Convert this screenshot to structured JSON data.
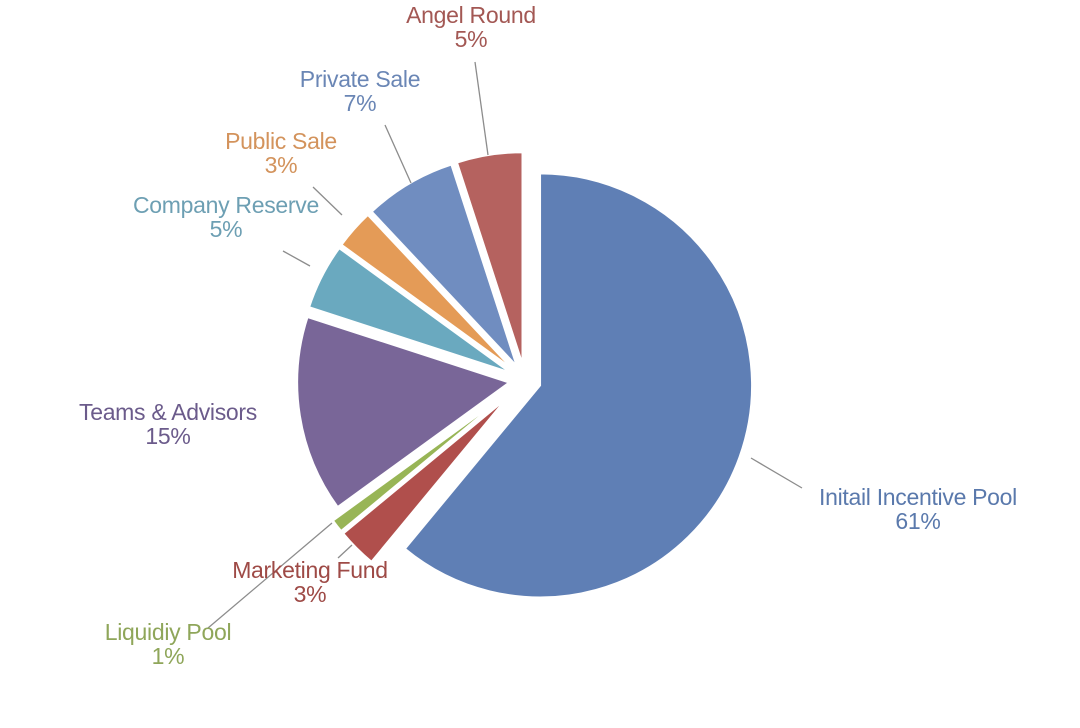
{
  "chart_data": {
    "type": "pie",
    "title": "",
    "exploded": true,
    "legend": "none",
    "slices": [
      {
        "name": "Initail Incentive Pool",
        "value": 61,
        "label": "61%",
        "color": "#5f7fb5",
        "label_color": "#5a79ac"
      },
      {
        "name": "Marketing Fund",
        "value": 3,
        "label": "3%",
        "color": "#b04f4c",
        "label_color": "#9e4a46"
      },
      {
        "name": "Liquidiy Pool",
        "value": 1,
        "label": "1%",
        "color": "#98b556",
        "label_color": "#8fa65a"
      },
      {
        "name": "Teams & Advisors",
        "value": 15,
        "label": "15%",
        "color": "#796698",
        "label_color": "#6b5b8b"
      },
      {
        "name": "Company Reserve",
        "value": 5,
        "label": "5%",
        "color": "#6aa9bf",
        "label_color": "#6d9fb3"
      },
      {
        "name": "Public Sale",
        "value": 3,
        "label": "3%",
        "color": "#e49b57",
        "label_color": "#d3935c"
      },
      {
        "name": "Private Sale",
        "value": 7,
        "label": "7%",
        "color": "#708dc0",
        "label_color": "#6a86b5"
      },
      {
        "name": "Angel Round",
        "value": 5,
        "label": "5%",
        "color": "#b5625f",
        "label_color": "#a35854"
      }
    ]
  }
}
